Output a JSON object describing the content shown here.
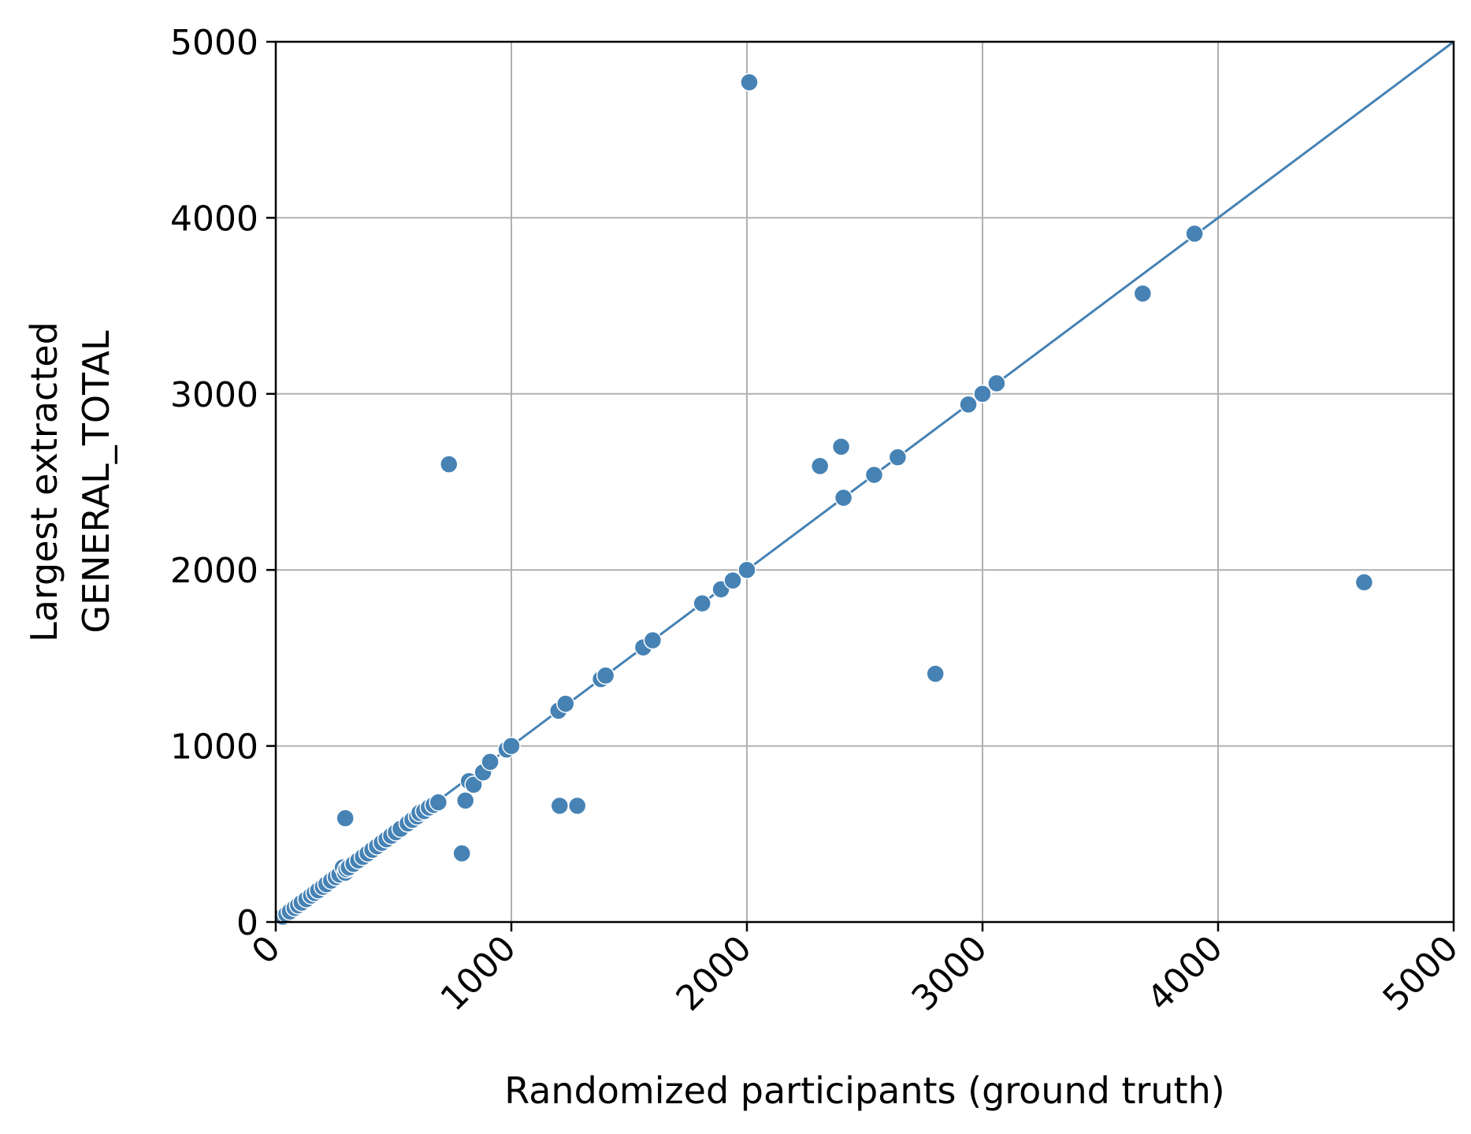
{
  "chart_data": {
    "type": "scatter",
    "xlabel": "Randomized participants (ground truth)",
    "ylabel_lines": [
      "Largest extracted",
      "GENERAL_TOTAL"
    ],
    "xlim": [
      0,
      5000
    ],
    "ylim": [
      0,
      5000
    ],
    "xticks": [
      0,
      1000,
      2000,
      3000,
      4000,
      5000
    ],
    "yticks": [
      0,
      1000,
      2000,
      3000,
      4000,
      5000
    ],
    "xtick_labels": [
      "0",
      "1000",
      "2000",
      "3000",
      "4000",
      "5000"
    ],
    "ytick_labels": [
      "0",
      "1000",
      "2000",
      "3000",
      "4000",
      "5000"
    ],
    "grid": true,
    "reference_line": {
      "from": [
        0,
        0
      ],
      "to": [
        5000,
        5000
      ]
    },
    "colors": {
      "points": "#4682b4",
      "line": "#4682b4",
      "grid": "#b0b0b0"
    },
    "points": [
      [
        30,
        30
      ],
      [
        45,
        45
      ],
      [
        60,
        60
      ],
      [
        80,
        80
      ],
      [
        95,
        95
      ],
      [
        110,
        110
      ],
      [
        130,
        130
      ],
      [
        150,
        150
      ],
      [
        165,
        165
      ],
      [
        180,
        180
      ],
      [
        200,
        200
      ],
      [
        215,
        215
      ],
      [
        235,
        235
      ],
      [
        255,
        255
      ],
      [
        270,
        270
      ],
      [
        285,
        310
      ],
      [
        295,
        280
      ],
      [
        300,
        300
      ],
      [
        310,
        310
      ],
      [
        330,
        330
      ],
      [
        350,
        350
      ],
      [
        370,
        370
      ],
      [
        390,
        390
      ],
      [
        410,
        410
      ],
      [
        430,
        430
      ],
      [
        450,
        450
      ],
      [
        470,
        470
      ],
      [
        490,
        490
      ],
      [
        510,
        510
      ],
      [
        530,
        530
      ],
      [
        560,
        560
      ],
      [
        580,
        580
      ],
      [
        600,
        600
      ],
      [
        610,
        620
      ],
      [
        630,
        630
      ],
      [
        650,
        650
      ],
      [
        670,
        665
      ],
      [
        690,
        680
      ],
      [
        295,
        590
      ],
      [
        735,
        2600
      ],
      [
        790,
        390
      ],
      [
        805,
        690
      ],
      [
        820,
        800
      ],
      [
        840,
        780
      ],
      [
        880,
        850
      ],
      [
        910,
        910
      ],
      [
        980,
        980
      ],
      [
        1000,
        1000
      ],
      [
        1200,
        1200
      ],
      [
        1230,
        1240
      ],
      [
        1205,
        660
      ],
      [
        1280,
        660
      ],
      [
        1380,
        1380
      ],
      [
        1400,
        1400
      ],
      [
        1560,
        1560
      ],
      [
        1600,
        1600
      ],
      [
        1810,
        1810
      ],
      [
        1890,
        1890
      ],
      [
        1940,
        1940
      ],
      [
        2000,
        2000
      ],
      [
        2010,
        4770
      ],
      [
        2310,
        2590
      ],
      [
        2400,
        2700
      ],
      [
        2410,
        2410
      ],
      [
        2540,
        2540
      ],
      [
        2640,
        2640
      ],
      [
        2800,
        1410
      ],
      [
        2940,
        2940
      ],
      [
        3000,
        3000
      ],
      [
        3060,
        3060
      ],
      [
        3680,
        3570
      ],
      [
        3900,
        3910
      ],
      [
        4620,
        1930
      ]
    ]
  }
}
